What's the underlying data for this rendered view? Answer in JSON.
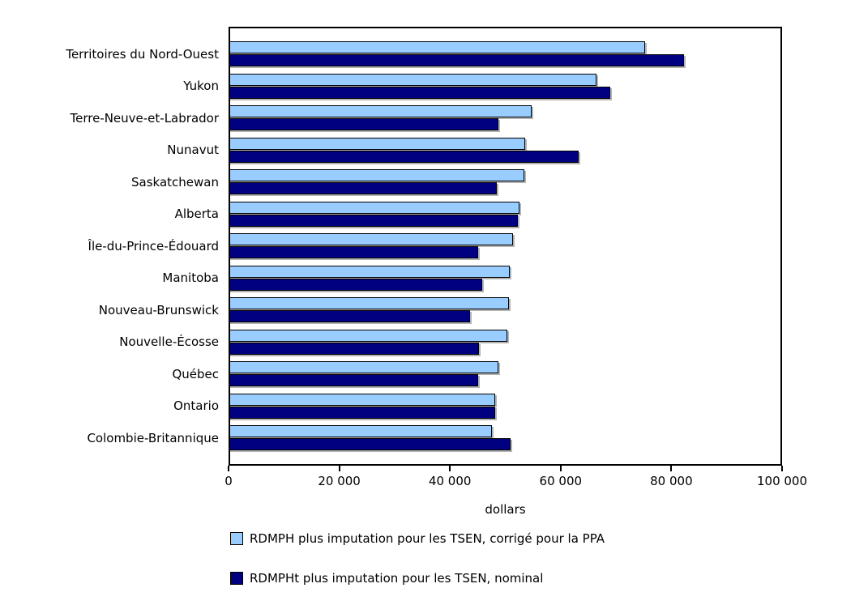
{
  "chart_data": {
    "type": "bar",
    "orientation": "horizontal",
    "title": "",
    "xlabel": "dollars",
    "ylabel": "",
    "xlim": [
      0,
      100000
    ],
    "x_ticks": [
      "0",
      "20 000",
      "40 000",
      "60 000",
      "80 000",
      "100 000"
    ],
    "grid": false,
    "legend_position": "bottom-left",
    "categories": [
      "Territoires du Nord-Ouest",
      "Yukon",
      "Terre-Neuve-et-Labrador",
      "Nunavut",
      "Saskatchewan",
      "Alberta",
      "Île-du-Prince-Édouard",
      "Manitoba",
      "Nouveau-Brunswick",
      "Nouvelle-Écosse",
      "Québec",
      "Ontario",
      "Colombie-Britannique"
    ],
    "series": [
      {
        "name": "RDMPH plus imputation pour les TSEN, corrigé pour la PPA",
        "color": "#99ccff",
        "values": [
          75200,
          66400,
          54800,
          53600,
          53500,
          52600,
          51400,
          50800,
          50600,
          50400,
          48800,
          48100,
          47600
        ]
      },
      {
        "name": "RDMPHt plus imputation pour les TSEN, nominal",
        "color": "#000080",
        "values": [
          82300,
          68900,
          48700,
          63300,
          48400,
          52300,
          45100,
          45800,
          43700,
          45200,
          45100,
          48200,
          51000
        ]
      }
    ],
    "colors": {
      "bar_border": "#000000",
      "bar_shadow": "#b3b3b3",
      "axis": "#000000",
      "background": "#ffffff"
    }
  }
}
